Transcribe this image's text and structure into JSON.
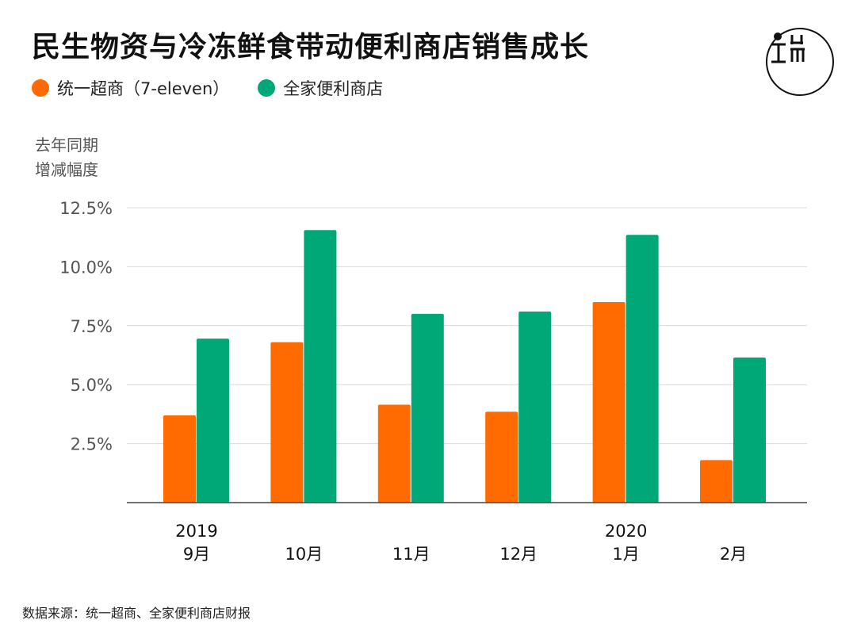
{
  "title": "民生物资与冷冻鲜食带动便利商店销售成长",
  "legend": [
    {
      "name": "统一超商（7-eleven）",
      "color": "#ff6b00"
    },
    {
      "name": "全家便利商店",
      "color": "#00a878"
    }
  ],
  "ylabel_line1": "去年同期",
  "ylabel_line2": "增减幅度",
  "source": "数据来源：统一超商、全家便利商店财报",
  "logo_icon": "initium-logo-icon",
  "chart_data": {
    "type": "bar",
    "categories": [
      "9月",
      "10月",
      "11月",
      "12月",
      "1月",
      "2月"
    ],
    "year_labels": [
      "2019",
      "",
      "",
      "",
      "2020",
      ""
    ],
    "series": [
      {
        "name": "统一超商（7-eleven）",
        "color": "#ff6b00",
        "values": [
          3.7,
          6.8,
          4.15,
          3.85,
          8.5,
          1.8
        ]
      },
      {
        "name": "全家便利商店",
        "color": "#00a878",
        "values": [
          6.95,
          11.55,
          8.0,
          8.1,
          11.35,
          6.15
        ]
      }
    ],
    "yticks": [
      2.5,
      5.0,
      7.5,
      10.0,
      12.5
    ],
    "ytick_labels": [
      "2.5%",
      "5.0%",
      "7.5%",
      "10.0%",
      "12.5%"
    ],
    "ylim": [
      0,
      12.5
    ],
    "grid": true
  }
}
